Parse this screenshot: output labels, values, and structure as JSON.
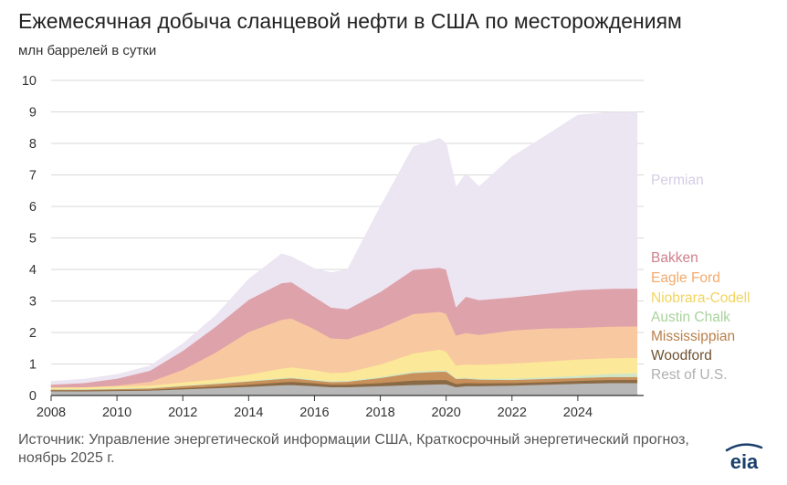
{
  "title": "Ежемесячная добыча сланцевой нефти в США по месторождениям",
  "subtitle": "млн баррелей в сутки",
  "source": "Источник: Управление энергетической информации США, Краткосрочный энергетический прогноз, ноябрь 2025 г.",
  "logo_text": "eia",
  "colors": {
    "Permian": "#ece5f2",
    "Bakken": "#dea2aa",
    "Eagle Ford": "#f8c8a0",
    "Niobrara-Codell": "#fbe898",
    "Austin Chalk": "#cfe7c8",
    "Mississippian": "#c8905a",
    "Woodford": "#8a6a45",
    "Rest of U.S.": "#b8b8b8"
  },
  "chart_data": {
    "type": "area",
    "stacked": true,
    "title": "Ежемесячная добыча сланцевой нефти в США по месторождениям",
    "ylabel": "млн баррелей в сутки",
    "ylim": [
      0,
      10
    ],
    "xlim": [
      2008,
      2026
    ],
    "yticks": [
      "0",
      "1",
      "2",
      "3",
      "4",
      "5",
      "6",
      "7",
      "8",
      "9",
      "10"
    ],
    "xticks": [
      "2008",
      "2010",
      "2012",
      "2014",
      "2016",
      "2018",
      "2020",
      "2022",
      "2024"
    ],
    "x": [
      2008,
      2009,
      2010,
      2011,
      2012,
      2013,
      2014,
      2015,
      2015.3,
      2016,
      2016.5,
      2017,
      2018,
      2019,
      2019.8,
      2020.0,
      2020.3,
      2020.6,
      2021,
      2022,
      2023,
      2024,
      2025,
      2025.8
    ],
    "series": [
      {
        "name": "Rest of U.S.",
        "values": [
          0.14,
          0.14,
          0.15,
          0.16,
          0.2,
          0.24,
          0.28,
          0.33,
          0.34,
          0.3,
          0.27,
          0.27,
          0.3,
          0.34,
          0.36,
          0.36,
          0.27,
          0.3,
          0.3,
          0.32,
          0.35,
          0.38,
          0.4,
          0.4
        ]
      },
      {
        "name": "Woodford",
        "values": [
          0.03,
          0.03,
          0.03,
          0.03,
          0.04,
          0.05,
          0.07,
          0.09,
          0.1,
          0.09,
          0.08,
          0.08,
          0.1,
          0.14,
          0.14,
          0.14,
          0.1,
          0.1,
          0.09,
          0.08,
          0.08,
          0.09,
          0.1,
          0.1
        ]
      },
      {
        "name": "Mississippian",
        "values": [
          0.02,
          0.02,
          0.03,
          0.04,
          0.06,
          0.08,
          0.1,
          0.11,
          0.11,
          0.09,
          0.08,
          0.09,
          0.16,
          0.24,
          0.26,
          0.26,
          0.16,
          0.14,
          0.12,
          0.1,
          0.1,
          0.09,
          0.09,
          0.09
        ]
      },
      {
        "name": "Austin Chalk",
        "values": [
          0.02,
          0.02,
          0.02,
          0.02,
          0.02,
          0.02,
          0.02,
          0.03,
          0.03,
          0.03,
          0.03,
          0.03,
          0.03,
          0.04,
          0.04,
          0.04,
          0.03,
          0.03,
          0.03,
          0.04,
          0.05,
          0.07,
          0.1,
          0.12
        ]
      },
      {
        "name": "Niobrara-Codell",
        "values": [
          0.05,
          0.05,
          0.06,
          0.07,
          0.1,
          0.13,
          0.2,
          0.3,
          0.32,
          0.3,
          0.26,
          0.27,
          0.4,
          0.58,
          0.66,
          0.6,
          0.4,
          0.42,
          0.44,
          0.48,
          0.5,
          0.52,
          0.5,
          0.49
        ]
      },
      {
        "name": "Eagle Ford",
        "values": [
          0.0,
          0.01,
          0.03,
          0.12,
          0.4,
          0.85,
          1.35,
          1.55,
          1.55,
          1.3,
          1.1,
          1.05,
          1.15,
          1.25,
          1.2,
          1.2,
          0.95,
          1.0,
          0.95,
          1.05,
          1.05,
          1.0,
          1.0,
          1.0
        ]
      },
      {
        "name": "Bakken",
        "values": [
          0.09,
          0.13,
          0.22,
          0.35,
          0.6,
          0.82,
          1.02,
          1.16,
          1.15,
          1.02,
          0.98,
          0.95,
          1.15,
          1.4,
          1.4,
          1.4,
          0.9,
          1.15,
          1.1,
          1.05,
          1.1,
          1.2,
          1.2,
          1.2
        ]
      },
      {
        "name": "Permian",
        "values": [
          0.1,
          0.12,
          0.13,
          0.15,
          0.22,
          0.35,
          0.65,
          0.93,
          0.8,
          0.9,
          1.1,
          1.25,
          2.7,
          3.9,
          4.1,
          4.0,
          3.8,
          3.9,
          3.6,
          4.45,
          5.0,
          5.55,
          5.6,
          5.6
        ]
      }
    ],
    "legend": [
      "Permian",
      "Bakken",
      "Eagle Ford",
      "Niobrara-Codell",
      "Austin Chalk",
      "Mississippian",
      "Woodford",
      "Rest of U.S."
    ],
    "legend_position": "right"
  }
}
